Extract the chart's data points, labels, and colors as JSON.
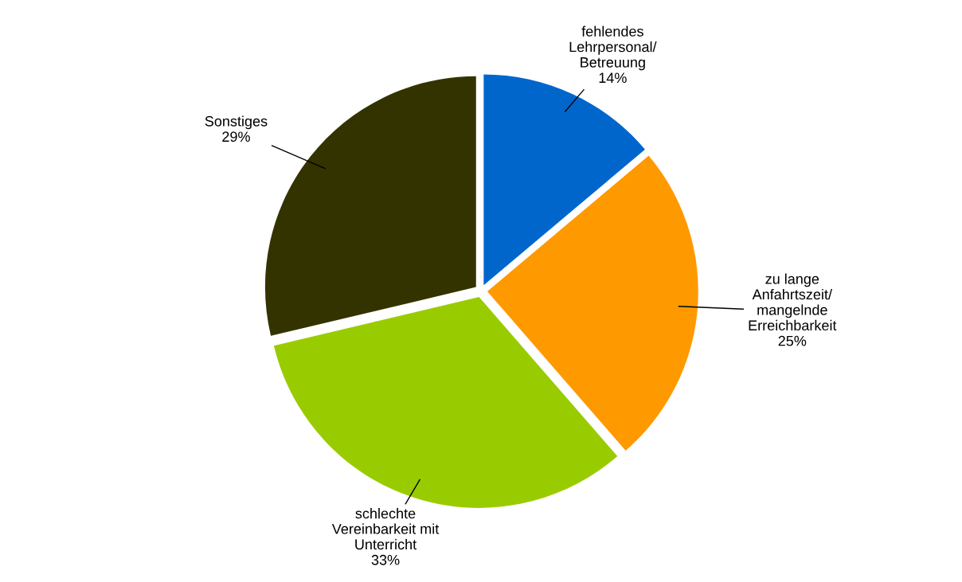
{
  "chart_data": {
    "type": "pie",
    "categories": [
      "fehlendes\nLehrpersonal/\nBetreuung",
      "zu lange\nAnfahrtszeit/\nmangelnde\nErreichbarkeit",
      "schlechte\nVereinbarkeit mit\nUnterricht",
      "Sonstiges"
    ],
    "values": [
      14,
      25,
      33,
      29
    ],
    "value_labels": [
      "14%",
      "25%",
      "33%",
      "29%"
    ],
    "colors": [
      "#0066cc",
      "#ff9900",
      "#99cc00",
      "#333300"
    ],
    "legend": false
  }
}
